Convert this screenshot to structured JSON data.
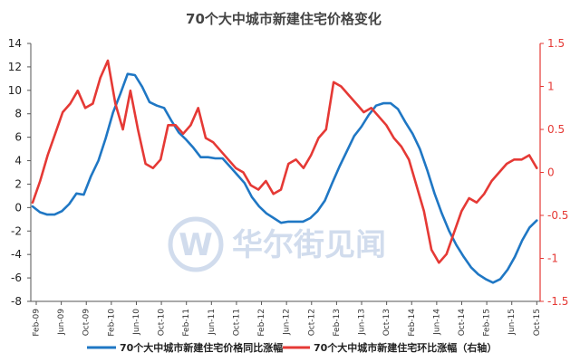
{
  "watermark": {
    "text": "华尔街见闻",
    "logo_letter": "W"
  },
  "chart_data": {
    "type": "line",
    "title": "70个大中城市新建住宅价格变化",
    "grid": false,
    "legend_position": "bottom",
    "x_ticks": [
      "Feb-09",
      "Jun-09",
      "Oct-09",
      "Feb-10",
      "Jun-10",
      "Oct-10",
      "Feb-11",
      "Jun-11",
      "Oct-11",
      "Feb-12",
      "Jun-12",
      "Oct-12",
      "Feb-13",
      "Jun-13",
      "Oct-13",
      "Feb-14",
      "Jun-14",
      "Oct-14",
      "Feb-15",
      "Jun-15",
      "Oct-15"
    ],
    "x_start": "Feb-09",
    "x_end": "Oct-15",
    "y_left": {
      "min": -8,
      "max": 14,
      "step": 2,
      "color": "#222222"
    },
    "y_right": {
      "min": -1.5,
      "max": 1.5,
      "step": 0.5,
      "color": "#e53935",
      "label": "右轴"
    },
    "series": [
      {
        "name": "70个大中城市新建住宅价格同比涨幅",
        "axis": "left",
        "color": "#1f77c4",
        "values": [
          0.1,
          -0.4,
          -0.6,
          -0.6,
          -0.3,
          0.3,
          1.2,
          1.1,
          2.7,
          4.0,
          5.9,
          8.1,
          9.7,
          11.4,
          11.3,
          10.3,
          9.0,
          8.7,
          8.5,
          7.4,
          6.4,
          5.8,
          5.1,
          4.3,
          4.3,
          4.2,
          4.2,
          3.5,
          2.8,
          2.1,
          0.9,
          0.1,
          -0.5,
          -0.9,
          -1.3,
          -1.2,
          -1.2,
          -1.2,
          -0.9,
          -0.3,
          0.6,
          2.1,
          3.5,
          4.8,
          6.1,
          6.9,
          7.9,
          8.7,
          8.9,
          8.9,
          8.4,
          7.3,
          6.3,
          5.0,
          3.2,
          1.2,
          -0.5,
          -2.0,
          -3.2,
          -4.2,
          -5.1,
          -5.7,
          -6.1,
          -6.4,
          -6.1,
          -5.3,
          -4.2,
          -2.8,
          -1.7,
          -1.1
        ]
      },
      {
        "name": "70个大中城市新建住宅环比涨幅",
        "axis": "right",
        "color": "#e53935",
        "values": [
          -0.35,
          -0.1,
          0.2,
          0.45,
          0.7,
          0.8,
          0.95,
          0.75,
          0.8,
          1.1,
          1.3,
          0.8,
          0.5,
          0.95,
          0.5,
          0.1,
          0.05,
          0.15,
          0.55,
          0.55,
          0.45,
          0.55,
          0.75,
          0.4,
          0.35,
          0.25,
          0.15,
          0.05,
          0.0,
          -0.15,
          -0.2,
          -0.1,
          -0.25,
          -0.2,
          0.1,
          0.15,
          0.05,
          0.2,
          0.4,
          0.5,
          1.05,
          1.0,
          0.9,
          0.8,
          0.7,
          0.75,
          0.65,
          0.55,
          0.4,
          0.3,
          0.15,
          -0.15,
          -0.45,
          -0.9,
          -1.05,
          -0.95,
          -0.7,
          -0.45,
          -0.3,
          -0.35,
          -0.25,
          -0.1,
          0.0,
          0.1,
          0.15,
          0.15,
          0.2,
          0.05
        ]
      }
    ]
  }
}
